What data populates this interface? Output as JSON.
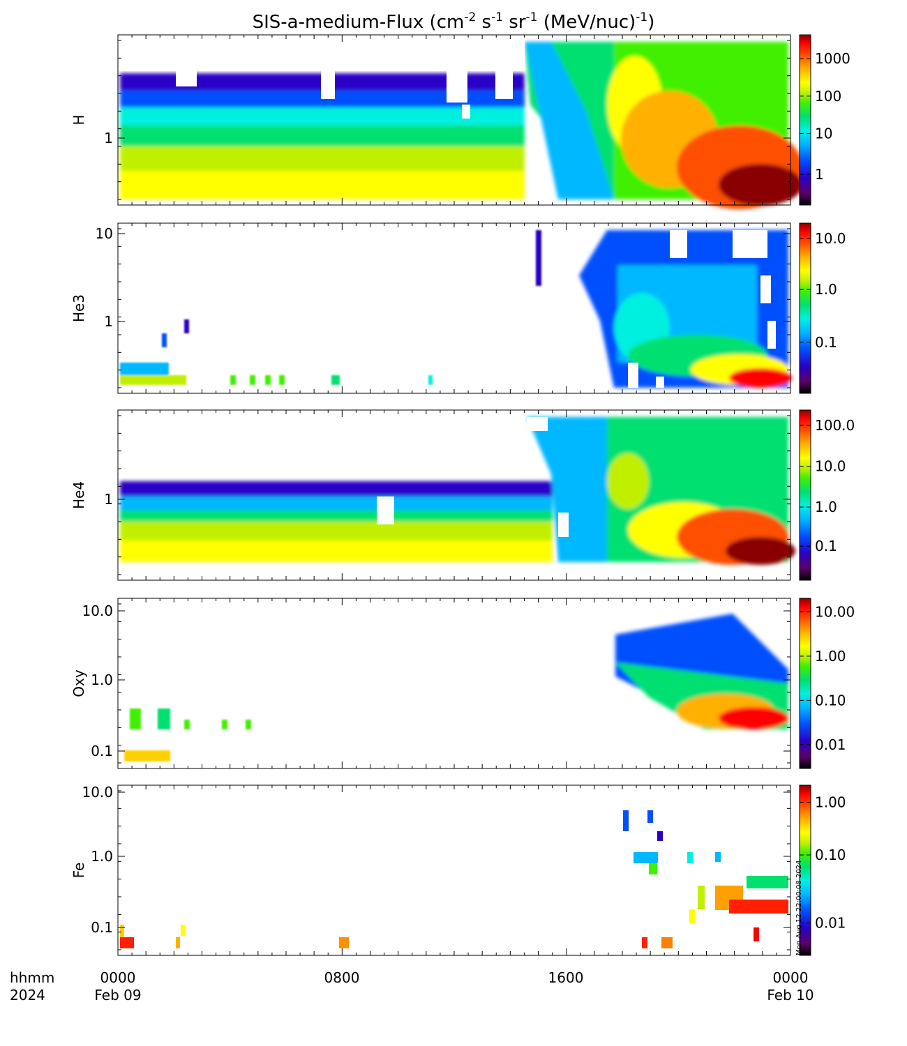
{
  "title_main": "SIS-a-medium-Flux (cm",
  "title_units": [
    "-2",
    " s",
    "-1",
    " sr",
    "-1",
    " (MeV/nuc)",
    "-1",
    ")"
  ],
  "stamp": "Mon Aug 12 22:00:08 2024",
  "time_axis": {
    "row1": [
      "hhmm",
      "0000",
      "0800",
      "1600",
      "0000"
    ],
    "row2": [
      "2024",
      "Feb 09",
      "",
      "",
      "Feb 10"
    ],
    "range_hours": [
      0,
      24
    ]
  },
  "colors": {
    "scale": [
      "#000000",
      "#5a0068",
      "#2a00c8",
      "#0050ff",
      "#00b8ff",
      "#00f0e0",
      "#00e070",
      "#40f000",
      "#c0f000",
      "#ffff00",
      "#ffb000",
      "#ff5000",
      "#ff0000",
      "#8a0000"
    ]
  },
  "chart_data": [
    {
      "type": "heatmap",
      "species": "H",
      "ylabel": "H",
      "y_ticks": [
        "1"
      ],
      "colorbar_ticks": [
        "1000",
        "100",
        "10",
        "1"
      ],
      "description": "Flux rises sharply after ~14:30 UT Feb 09, reaching >1000 near 22:00-24:00 at lowest energies"
    },
    {
      "type": "heatmap",
      "species": "He3",
      "ylabel": "He3",
      "y_ticks": [
        "10",
        "1"
      ],
      "colorbar_ticks": [
        "10.0",
        "1.0",
        "0.1"
      ]
    },
    {
      "type": "heatmap",
      "species": "He4",
      "ylabel": "He4",
      "y_ticks": [
        "1"
      ],
      "colorbar_ticks": [
        "100.0",
        "10.0",
        "1.0",
        "0.1"
      ]
    },
    {
      "type": "heatmap",
      "species": "Oxy",
      "ylabel": "Oxy",
      "y_ticks": [
        "10.0",
        "1.0",
        "0.1"
      ],
      "colorbar_ticks": [
        "10.00",
        "1.00",
        "0.10",
        "0.01"
      ]
    },
    {
      "type": "heatmap",
      "species": "Fe",
      "ylabel": "Fe",
      "y_ticks": [
        "10.0",
        "1.0",
        "0.1"
      ],
      "colorbar_ticks": [
        "1.00",
        "0.10",
        "0.01"
      ]
    }
  ]
}
